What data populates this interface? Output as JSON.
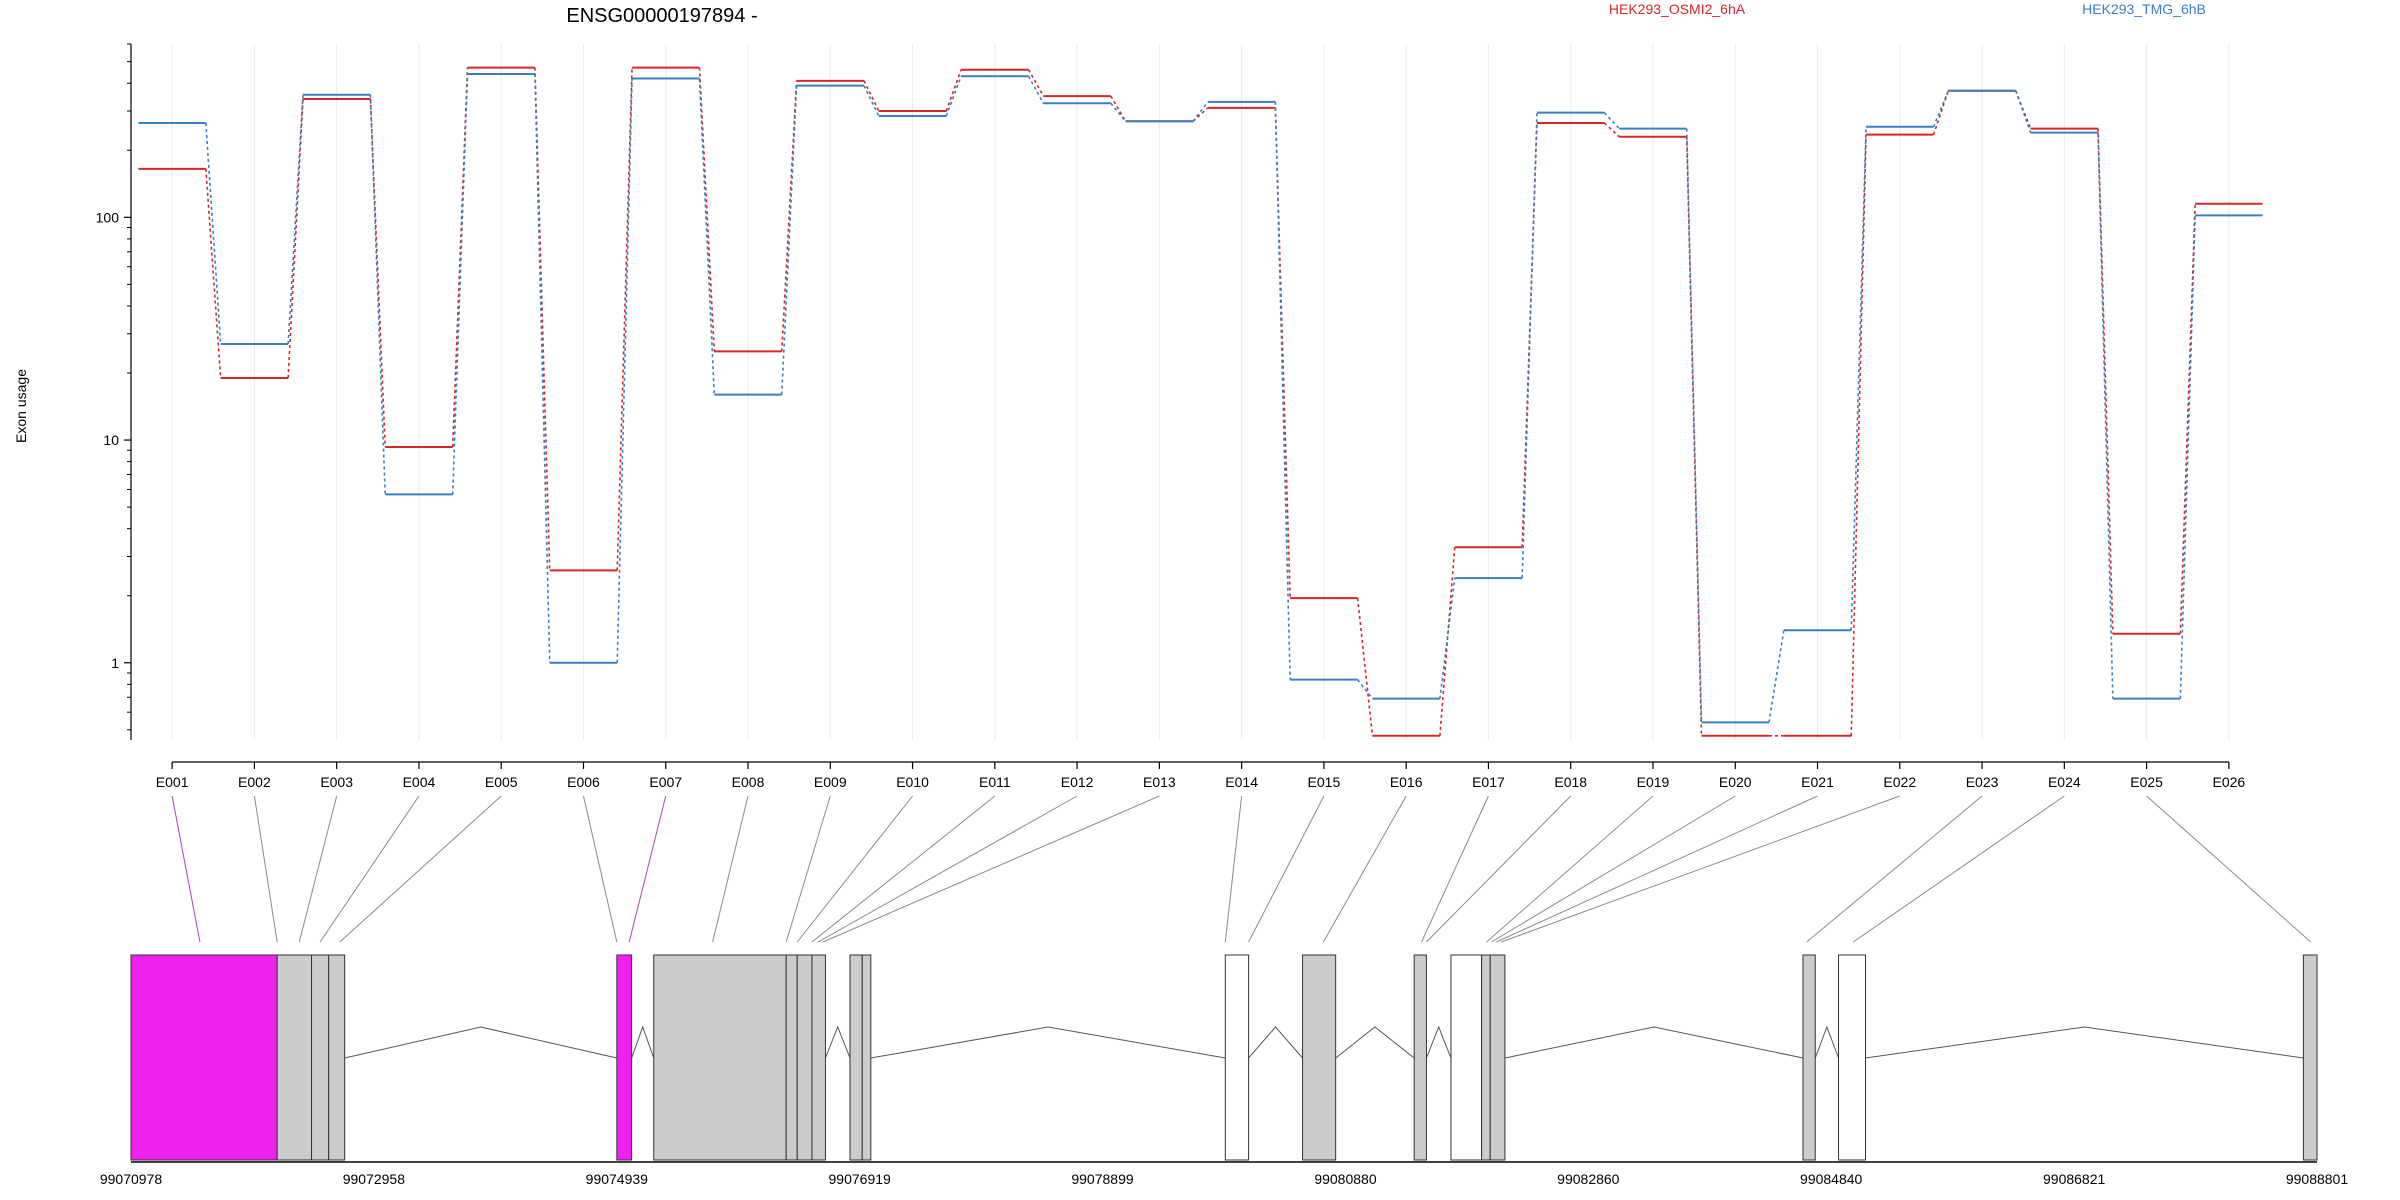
{
  "chart_data": {
    "type": "line",
    "title": "ENSG00000197894 -",
    "ylabel": "Exon usage",
    "xlabel": "",
    "y_scale": "log",
    "ylim": [
      0.45,
      600
    ],
    "y_ticks": [
      {
        "value": 1,
        "label": "1"
      },
      {
        "value": 10,
        "label": "10"
      },
      {
        "value": 100,
        "label": "100"
      }
    ],
    "grid": "vertical",
    "legend_position": "top",
    "categories": [
      "E001",
      "E002",
      "E003",
      "E004",
      "E005",
      "E006",
      "E007",
      "E008",
      "E009",
      "E010",
      "E011",
      "E012",
      "E013",
      "E014",
      "E015",
      "E016",
      "E017",
      "E018",
      "E019",
      "E020",
      "E021",
      "E022",
      "E023",
      "E024",
      "E025",
      "E026"
    ],
    "series": [
      {
        "name": "HEK293_OSMI2_6hA",
        "color": "#d62728",
        "values": [
          165,
          19,
          340,
          9.3,
          470,
          2.6,
          470,
          25,
          410,
          300,
          460,
          350,
          270,
          310,
          1.95,
          0.47,
          3.3,
          265,
          230,
          0.47,
          0.47,
          235,
          370,
          250,
          1.35,
          115
        ]
      },
      {
        "name": "HEK293_TMG_6hB",
        "color": "#3a7fc0",
        "values": [
          265,
          27,
          355,
          5.7,
          440,
          1.0,
          420,
          16,
          390,
          285,
          430,
          325,
          270,
          330,
          0.84,
          0.69,
          2.4,
          295,
          250,
          0.54,
          1.4,
          255,
          370,
          240,
          0.69,
          102
        ]
      }
    ],
    "gene_model": {
      "genomic_start": 99070978,
      "genomic_end": 99088801,
      "axis_ticks": [
        {
          "value": 99070978,
          "label": "99070978"
        },
        {
          "value": 99072958,
          "label": "99072958"
        },
        {
          "value": 99074939,
          "label": "99074939"
        },
        {
          "value": 99076919,
          "label": "99076919"
        },
        {
          "value": 99078899,
          "label": "99078899"
        },
        {
          "value": 99080880,
          "label": "99080880"
        },
        {
          "value": 99082860,
          "label": "99082860"
        },
        {
          "value": 99084840,
          "label": "99084840"
        },
        {
          "value": 99086821,
          "label": "99086821"
        },
        {
          "value": 99088801,
          "label": "99088801"
        }
      ],
      "exons": [
        {
          "start": 99070978,
          "end": 99072170,
          "fill": "#f020f0"
        },
        {
          "start": 99072170,
          "end": 99072450,
          "fill": "#cccccc"
        },
        {
          "start": 99072450,
          "end": 99072590,
          "fill": "#cccccc"
        },
        {
          "start": 99072590,
          "end": 99072720,
          "fill": "#cccccc"
        },
        {
          "start": 99074939,
          "end": 99075060,
          "fill": "#f020f0"
        },
        {
          "start": 99075240,
          "end": 99076320,
          "fill": "#cccccc"
        },
        {
          "start": 99076320,
          "end": 99076410,
          "fill": "#cccccc"
        },
        {
          "start": 99076410,
          "end": 99076530,
          "fill": "#cccccc"
        },
        {
          "start": 99076530,
          "end": 99076640,
          "fill": "#cccccc"
        },
        {
          "start": 99076840,
          "end": 99076940,
          "fill": "#cccccc"
        },
        {
          "start": 99076940,
          "end": 99077010,
          "fill": "#cccccc"
        },
        {
          "start": 99079900,
          "end": 99080090,
          "fill": "#ffffff"
        },
        {
          "start": 99080530,
          "end": 99080800,
          "fill": "#cccccc"
        },
        {
          "start": 99081440,
          "end": 99081540,
          "fill": "#cccccc"
        },
        {
          "start": 99081740,
          "end": 99081990,
          "fill": "#ffffff"
        },
        {
          "start": 99081990,
          "end": 99082060,
          "fill": "#cccccc"
        },
        {
          "start": 99082060,
          "end": 99082180,
          "fill": "#cccccc"
        },
        {
          "start": 99084610,
          "end": 99084710,
          "fill": "#cccccc"
        },
        {
          "start": 99084900,
          "end": 99085120,
          "fill": "#ffffff"
        },
        {
          "start": 99088690,
          "end": 99088801,
          "fill": "#cccccc"
        }
      ],
      "exon_bin_connectors": [
        99071540,
        99072170,
        99072350,
        99072520,
        99072680,
        99074939,
        99075040,
        99075720,
        99076320,
        99076410,
        99076530,
        99076580,
        99076620,
        99079900,
        99080090,
        99080700,
        99081500,
        99081540,
        99082030,
        99082070,
        99082110,
        99082150,
        99084640,
        99085020,
        99088750
      ],
      "highlighted_bins": [
        "E001",
        "E007"
      ]
    }
  }
}
